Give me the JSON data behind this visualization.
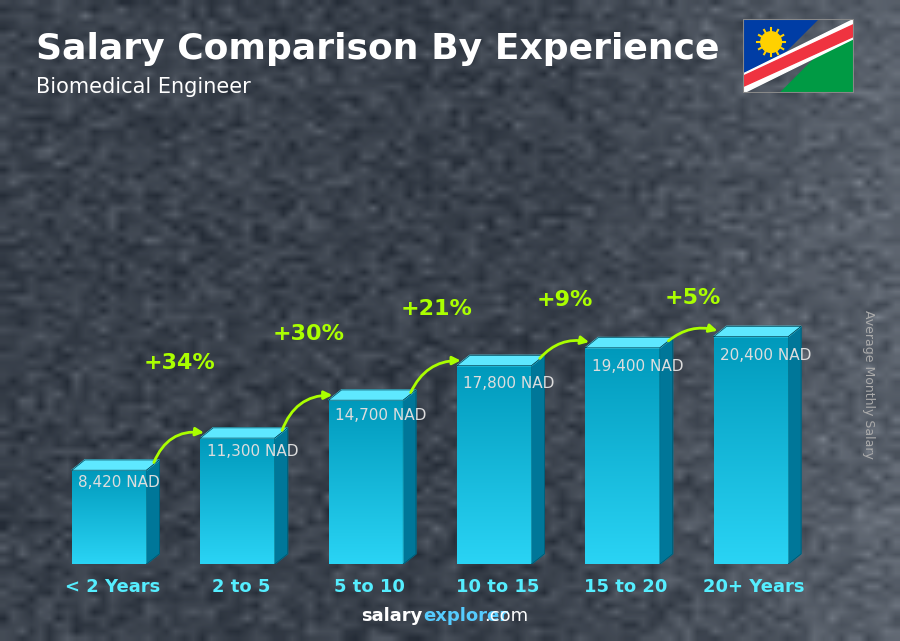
{
  "title": "Salary Comparison By Experience",
  "subtitle": "Biomedical Engineer",
  "ylabel": "Average Monthly Salary",
  "footer": "salaryexplorer.com",
  "categories": [
    "< 2 Years",
    "2 to 5",
    "5 to 10",
    "10 to 15",
    "15 to 20",
    "20+ Years"
  ],
  "values": [
    8420,
    11300,
    14700,
    17800,
    19400,
    20400
  ],
  "labels": [
    "8,420 NAD",
    "11,300 NAD",
    "14,700 NAD",
    "17,800 NAD",
    "19,400 NAD",
    "20,400 NAD"
  ],
  "pct_changes": [
    null,
    "+34%",
    "+30%",
    "+21%",
    "+9%",
    "+5%"
  ],
  "bar_front_top": "#2ad4f5",
  "bar_front_bot": "#0099bb",
  "bar_top_face": "#5ee8ff",
  "bar_side_face": "#007799",
  "bar_edge": "#004455",
  "bg_dark": "#1c2330",
  "title_color": "#ffffff",
  "subtitle_color": "#ffffff",
  "label_color": "#dddddd",
  "pct_color": "#aaff00",
  "xcat_color": "#55eeff",
  "ylabel_color": "#aaaaaa",
  "footer_salary_color": "#ffffff",
  "footer_explorer_color": "#55ccff",
  "title_fontsize": 26,
  "subtitle_fontsize": 15,
  "label_fontsize": 11,
  "pct_fontsize": 16,
  "xcat_fontsize": 13,
  "ylabel_fontsize": 9,
  "footer_fontsize": 13
}
